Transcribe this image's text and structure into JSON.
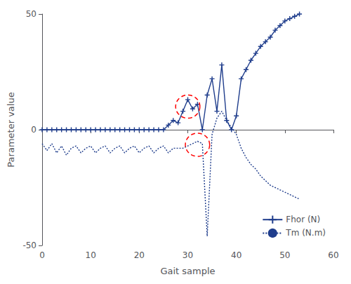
{
  "chart_data": {
    "type": "line",
    "xlabel": "Gait sample",
    "ylabel": "Parameter value",
    "xlim": [
      0,
      60
    ],
    "ylim": [
      -50,
      50
    ],
    "xticks": [
      0,
      10,
      20,
      30,
      40,
      50,
      60
    ],
    "yticks": [
      -50,
      0,
      50
    ],
    "grid": false,
    "legend": "lower right",
    "series": [
      {
        "name": "Fhor (N)",
        "color": "#1f3d8c",
        "marker": "plus",
        "line_style": "solid",
        "x": [
          0,
          1,
          2,
          3,
          4,
          5,
          6,
          7,
          8,
          9,
          10,
          11,
          12,
          13,
          14,
          15,
          16,
          17,
          18,
          19,
          20,
          21,
          22,
          23,
          24,
          25,
          26,
          27,
          28,
          29,
          30,
          31,
          32,
          33,
          34,
          35,
          36,
          37,
          38,
          39,
          40,
          41,
          42,
          43,
          44,
          45,
          46,
          47,
          48,
          49,
          50,
          51,
          52,
          53
        ],
        "values": [
          0,
          0,
          0,
          0,
          0,
          0,
          0,
          0,
          0,
          0,
          0,
          0,
          0,
          0,
          0,
          0,
          0,
          0,
          0,
          0,
          0,
          0,
          0,
          0,
          0,
          0,
          2,
          4,
          3,
          8,
          13,
          9,
          11,
          0,
          15,
          22,
          8,
          28,
          4,
          0,
          6,
          22,
          26,
          30,
          33,
          36,
          38,
          40,
          43,
          45,
          47,
          48,
          49,
          50
        ]
      },
      {
        "name": "Tm (N.m)",
        "color": "#1f3d8c",
        "marker": "none",
        "line_style": "dotted",
        "x": [
          0,
          1,
          2,
          3,
          4,
          5,
          6,
          7,
          8,
          9,
          10,
          11,
          12,
          13,
          14,
          15,
          16,
          17,
          18,
          19,
          20,
          21,
          22,
          23,
          24,
          25,
          26,
          27,
          28,
          29,
          30,
          31,
          32,
          33,
          34,
          35,
          36,
          37,
          38,
          39,
          40,
          41,
          42,
          43,
          44,
          45,
          46,
          47,
          48,
          49,
          50,
          51,
          52,
          53
        ],
        "values": [
          -6,
          -9,
          -6,
          -10,
          -7,
          -11,
          -8,
          -7,
          -10,
          -8,
          -7,
          -10,
          -8,
          -7,
          -10,
          -8,
          -7,
          -10,
          -8,
          -7,
          -10,
          -8,
          -7,
          -10,
          -8,
          -7,
          -10,
          -8,
          -8,
          -8,
          -7,
          -6,
          -5,
          -6,
          -46,
          -2,
          5,
          8,
          4,
          1,
          -2,
          -8,
          -12,
          -15,
          -17,
          -20,
          -22,
          -24,
          -25,
          -26,
          -27,
          -28,
          -29,
          -30
        ]
      }
    ],
    "ellipses": [
      {
        "cx": 30,
        "cy": 10,
        "rx": 2.5,
        "ry": 5,
        "color": "red",
        "line_style": "dashed"
      },
      {
        "cx": 32,
        "cy": -6.5,
        "rx": 2.5,
        "ry": 5,
        "color": "red",
        "line_style": "dashed"
      }
    ]
  }
}
